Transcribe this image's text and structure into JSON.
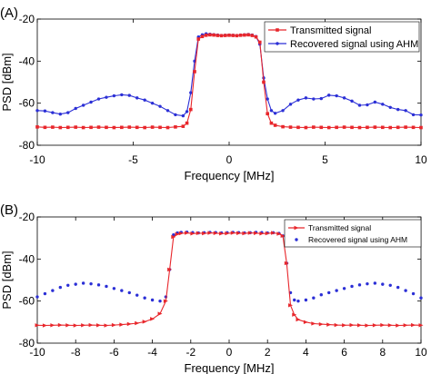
{
  "chart_data": [
    {
      "type": "line",
      "panel_label": "(A)",
      "xlabel": "Frequency [MHz]",
      "ylabel": "PSD [dBm]",
      "xlim": [
        -10,
        10
      ],
      "ylim": [
        -80,
        -20
      ],
      "xticks": [
        -10,
        -5,
        0,
        5,
        10
      ],
      "yticks": [
        -80,
        -60,
        -40,
        -20
      ],
      "tick_labels_x": [
        "-10",
        "-5",
        "0",
        "5",
        "10"
      ],
      "tick_labels_y": [
        "-80",
        "-60",
        "-40",
        "-20"
      ],
      "grid": false,
      "legend_position": "top-right",
      "series": [
        {
          "name": "Transmitted signal",
          "color": "#e8262b",
          "marker": "square",
          "x": [
            -10.0,
            -9.6,
            -9.2,
            -8.8,
            -8.4,
            -8.0,
            -7.6,
            -7.2,
            -6.8,
            -6.4,
            -6.0,
            -5.6,
            -5.2,
            -4.8,
            -4.4,
            -4.0,
            -3.6,
            -3.2,
            -2.8,
            -2.4,
            -2.2,
            -2.0,
            -1.8,
            -1.6,
            -1.4,
            -1.2,
            -1.0,
            -0.8,
            -0.6,
            -0.4,
            -0.2,
            0.0,
            0.2,
            0.4,
            0.6,
            0.8,
            1.0,
            1.2,
            1.4,
            1.6,
            1.8,
            2.0,
            2.2,
            2.4,
            2.8,
            3.2,
            3.6,
            4.0,
            4.4,
            4.8,
            5.2,
            5.6,
            6.0,
            6.4,
            6.8,
            7.2,
            7.6,
            8.0,
            8.4,
            8.8,
            9.2,
            9.6,
            10.0
          ],
          "y": [
            -71.3,
            -71.5,
            -71.4,
            -71.6,
            -71.5,
            -71.4,
            -71.6,
            -71.5,
            -71.4,
            -71.5,
            -71.6,
            -71.5,
            -71.4,
            -71.5,
            -71.6,
            -71.4,
            -71.5,
            -71.6,
            -71.3,
            -71.0,
            -69.5,
            -63.0,
            -45.0,
            -29.5,
            -28.3,
            -27.7,
            -27.5,
            -27.6,
            -27.8,
            -27.9,
            -27.8,
            -27.7,
            -27.8,
            -27.9,
            -27.7,
            -27.6,
            -27.5,
            -27.8,
            -28.5,
            -31.0,
            -50.0,
            -65.0,
            -69.5,
            -70.5,
            -71.2,
            -71.4,
            -71.5,
            -71.6,
            -71.4,
            -71.5,
            -71.6,
            -71.5,
            -71.4,
            -71.5,
            -71.6,
            -71.5,
            -71.4,
            -71.5,
            -71.6,
            -71.5,
            -71.4,
            -71.5,
            -71.6
          ]
        },
        {
          "name": "Recovered signal using AHM",
          "color": "#2b2fd6",
          "marker": "dot",
          "x": [
            -10.0,
            -9.6,
            -9.2,
            -8.8,
            -8.4,
            -8.0,
            -7.6,
            -7.2,
            -6.8,
            -6.4,
            -6.0,
            -5.6,
            -5.2,
            -4.8,
            -4.4,
            -4.0,
            -3.6,
            -3.2,
            -2.8,
            -2.4,
            -2.2,
            -2.0,
            -1.8,
            -1.6,
            -1.4,
            -1.2,
            -1.0,
            -0.8,
            -0.6,
            -0.4,
            -0.2,
            0.0,
            0.2,
            0.4,
            0.6,
            0.8,
            1.0,
            1.2,
            1.4,
            1.6,
            1.8,
            2.0,
            2.2,
            2.4,
            2.8,
            3.2,
            3.6,
            4.0,
            4.4,
            4.8,
            5.2,
            5.6,
            6.0,
            6.4,
            6.8,
            7.2,
            7.6,
            8.0,
            8.4,
            8.8,
            9.2,
            9.6,
            10.0
          ],
          "y": [
            -63.5,
            -63.7,
            -64.5,
            -65.2,
            -64.5,
            -62.5,
            -61.0,
            -59.5,
            -58.0,
            -57.2,
            -56.5,
            -56.0,
            -56.3,
            -57.5,
            -58.5,
            -60.0,
            -61.5,
            -63.5,
            -65.5,
            -66.0,
            -64.0,
            -55.0,
            -40.0,
            -28.5,
            -27.5,
            -27.0,
            -27.2,
            -27.4,
            -27.6,
            -27.8,
            -27.7,
            -27.6,
            -27.7,
            -27.8,
            -27.6,
            -27.5,
            -27.3,
            -27.6,
            -28.3,
            -32.0,
            -48.0,
            -58.0,
            -63.5,
            -64.8,
            -63.5,
            -60.5,
            -58.5,
            -57.5,
            -58.0,
            -57.8,
            -56.2,
            -56.5,
            -57.5,
            -59.0,
            -61.0,
            -60.8,
            -59.5,
            -60.5,
            -62.0,
            -63.0,
            -63.5,
            -65.5,
            -65.6
          ]
        }
      ]
    },
    {
      "type": "line",
      "panel_label": "(B)",
      "xlabel": "Frequency [MHz]",
      "ylabel": "PSD [dBm]",
      "xlim": [
        -10,
        10
      ],
      "ylim": [
        -80,
        -20
      ],
      "xticks": [
        -10,
        -8,
        -6,
        -4,
        -2,
        0,
        2,
        4,
        6,
        8,
        10
      ],
      "yticks": [
        -80,
        -60,
        -40,
        -20
      ],
      "tick_labels_x": [
        "-10",
        "-8",
        "-6",
        "-4",
        "-2",
        "0",
        "2",
        "4",
        "6",
        "8",
        "10"
      ],
      "tick_labels_y": [
        "-80",
        "-60",
        "-40",
        "-20"
      ],
      "grid": false,
      "legend_position": "top-right",
      "series": [
        {
          "name": "Transmitted signal",
          "color": "#e8262b",
          "marker": "triangle",
          "x": [
            -10.0,
            -9.6,
            -9.2,
            -8.8,
            -8.4,
            -8.0,
            -7.6,
            -7.2,
            -6.8,
            -6.4,
            -6.0,
            -5.6,
            -5.2,
            -4.8,
            -4.4,
            -4.0,
            -3.6,
            -3.3,
            -3.1,
            -2.9,
            -2.7,
            -2.5,
            -2.2,
            -1.9,
            -1.6,
            -1.3,
            -1.0,
            -0.7,
            -0.4,
            -0.1,
            0.2,
            0.5,
            0.8,
            1.1,
            1.4,
            1.7,
            2.0,
            2.3,
            2.6,
            2.8,
            3.0,
            3.2,
            3.4,
            3.6,
            4.0,
            4.4,
            4.8,
            5.2,
            5.6,
            6.0,
            6.4,
            6.8,
            7.2,
            7.6,
            8.0,
            8.4,
            8.8,
            9.2,
            9.6,
            10.0
          ],
          "y": [
            -71.5,
            -71.6,
            -71.5,
            -71.4,
            -71.5,
            -71.6,
            -71.5,
            -71.4,
            -71.5,
            -71.6,
            -71.4,
            -71.2,
            -70.9,
            -70.5,
            -69.8,
            -68.5,
            -66.0,
            -60.0,
            -45.0,
            -29.5,
            -28.2,
            -27.8,
            -27.6,
            -27.9,
            -27.7,
            -27.8,
            -27.6,
            -27.7,
            -27.9,
            -27.8,
            -27.6,
            -27.7,
            -27.8,
            -27.6,
            -27.7,
            -27.9,
            -27.8,
            -27.6,
            -28.0,
            -29.0,
            -42.0,
            -62.0,
            -66.5,
            -68.8,
            -70.0,
            -70.7,
            -71.0,
            -71.2,
            -71.4,
            -71.5,
            -71.4,
            -71.5,
            -71.6,
            -71.5,
            -71.4,
            -71.5,
            -71.6,
            -71.5,
            -71.4,
            -71.5
          ]
        },
        {
          "name": "Recovered signal using AHM",
          "color": "#2b2fd6",
          "marker": "dot",
          "x": [
            -10.0,
            -9.6,
            -9.2,
            -8.8,
            -8.4,
            -8.0,
            -7.6,
            -7.2,
            -6.8,
            -6.4,
            -6.0,
            -5.6,
            -5.2,
            -4.8,
            -4.4,
            -4.0,
            -3.6,
            -3.3,
            -3.1,
            -2.9,
            -2.7,
            -2.5,
            -2.2,
            -1.9,
            -1.6,
            -1.3,
            -1.0,
            -0.7,
            -0.4,
            -0.1,
            0.2,
            0.5,
            0.8,
            1.1,
            1.4,
            1.7,
            2.0,
            2.3,
            2.6,
            2.8,
            3.0,
            3.2,
            3.4,
            3.6,
            4.0,
            4.4,
            4.8,
            5.2,
            5.6,
            6.0,
            6.4,
            6.8,
            7.2,
            7.6,
            8.0,
            8.4,
            8.8,
            9.2,
            9.6,
            10.0
          ],
          "y": [
            -58.0,
            -56.5,
            -55.0,
            -53.5,
            -52.5,
            -52.0,
            -51.5,
            -51.8,
            -52.3,
            -53.0,
            -54.0,
            -55.0,
            -56.0,
            -57.2,
            -58.5,
            -59.5,
            -60.0,
            -58.0,
            -45.0,
            -28.5,
            -27.6,
            -27.3,
            -27.2,
            -27.4,
            -27.6,
            -27.5,
            -27.3,
            -27.4,
            -27.6,
            -27.5,
            -27.3,
            -27.4,
            -27.6,
            -27.5,
            -27.3,
            -27.4,
            -27.6,
            -27.5,
            -27.8,
            -29.0,
            -42.0,
            -56.0,
            -59.5,
            -60.0,
            -59.5,
            -58.5,
            -57.0,
            -56.0,
            -55.0,
            -54.0,
            -53.0,
            -52.3,
            -51.8,
            -51.5,
            -52.0,
            -52.5,
            -53.5,
            -55.0,
            -56.5,
            -58.5
          ]
        }
      ]
    }
  ]
}
